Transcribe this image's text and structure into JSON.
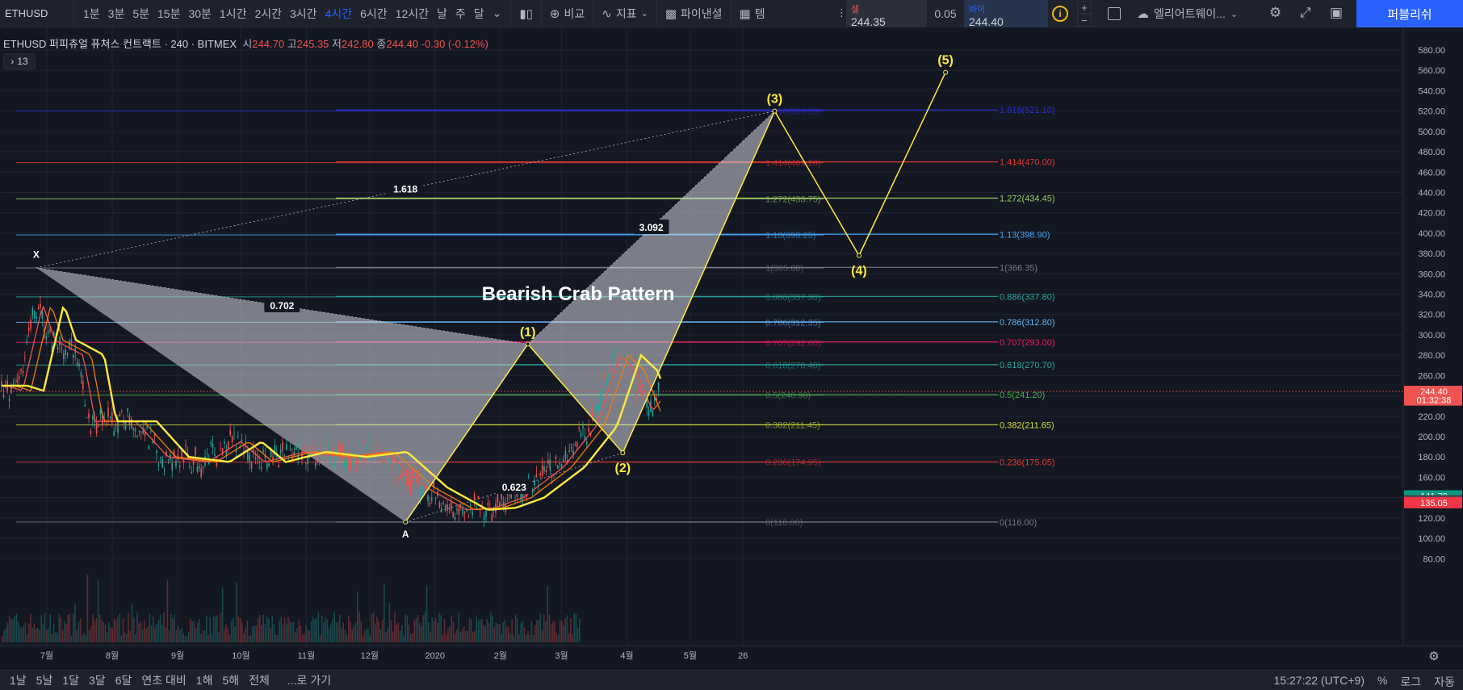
{
  "header": {
    "symbol": "ETHUSD",
    "timeframes": [
      "1분",
      "3분",
      "5분",
      "15분",
      "30분",
      "1시간",
      "2시간",
      "3시간",
      "4시간",
      "6시간",
      "12시간",
      "날",
      "주",
      "달"
    ],
    "active_timeframe": "4시간",
    "compare_label": "비교",
    "indicators_label": "지표",
    "financials_label": "파이낸셜",
    "template_label": "템",
    "sell_label": "셀",
    "sell_price": "244.35",
    "spread": "0.05",
    "buy_label": "바이",
    "buy_price": "244.40",
    "layout_name": "엘리어트웨이...",
    "publish_label": "퍼블리쉬"
  },
  "legend": {
    "title": "ETHUSD 퍼피츄얼 퓨쳐스 컨트랙트",
    "interval": "240",
    "exchange": "BITMEX",
    "open_label": "시",
    "open": "244.70",
    "high_label": "고",
    "high": "245.35",
    "low_label": "저",
    "low": "242.80",
    "close_label": "종",
    "close": "244.40",
    "change": "-0.30 (-0.12%)",
    "indicator_count": "13"
  },
  "chart_data": {
    "type": "line",
    "ylim": [
      70,
      590
    ],
    "y_ticks": [
      "580.00",
      "560.00",
      "540.00",
      "520.00",
      "500.00",
      "480.00",
      "460.00",
      "440.00",
      "420.00",
      "400.00",
      "380.00",
      "360.00",
      "340.00",
      "320.00",
      "300.00",
      "280.00",
      "260.00",
      "240.00",
      "220.00",
      "200.00",
      "180.00",
      "160.00",
      "140.00",
      "120.00",
      "100.00",
      "80.00"
    ],
    "x_labels": [
      "7월",
      "8월",
      "9월",
      "10월",
      "11월",
      "12월",
      "2020",
      "2월",
      "3월",
      "4월",
      "5월",
      "26"
    ],
    "x_label_dates": [
      "2019-07-01",
      "2019-08-01",
      "2019-09-01",
      "2019-10-01",
      "2019-11-01",
      "2019-12-01",
      "2020-01-01",
      "2020-02-01",
      "2020-03-01",
      "2020-04-01",
      "2020-05-01",
      "2020-05-26"
    ],
    "price_labels": [
      {
        "text": "244.40",
        "value": 244.4,
        "color": "#ef5350"
      },
      {
        "text": "01:32:38",
        "value": 236,
        "color": "#ef5350"
      },
      {
        "text": "141.70",
        "value": 141.7,
        "color": "#089981"
      },
      {
        "text": "136.95",
        "value": 136.95,
        "color": "#434651"
      },
      {
        "text": "135.05",
        "value": 135.05,
        "color": "#f23645"
      }
    ],
    "fib_levels": [
      {
        "ratio": "1.618",
        "color": "#2a2ecd",
        "p1": 520.15,
        "p2": 521.1
      },
      {
        "ratio": "1.414",
        "color": "#e53935",
        "p1": 469.2,
        "p2": 470.0
      },
      {
        "ratio": "1.272",
        "color": "#9ccc65",
        "p1": 433.75,
        "p2": 434.45
      },
      {
        "ratio": "1.13",
        "color": "#42a5f5",
        "p1": 398.25,
        "p2": 398.9
      },
      {
        "ratio": "1",
        "color": "#787b86",
        "p1": 365.8,
        "p2": 366.35
      },
      {
        "ratio": "0.886",
        "color": "#26a69a",
        "p1": 337.3,
        "p2": 337.8
      },
      {
        "ratio": "0.786",
        "color": "#64b5f6",
        "p1": 312.35,
        "p2": 312.8
      },
      {
        "ratio": "0.707",
        "color": "#e91e63",
        "p1": 292.6,
        "p2": 293.0
      },
      {
        "ratio": "0.618",
        "color": "#26a69a",
        "p1": 270.4,
        "p2": 270.7
      },
      {
        "ratio": "0.5",
        "color": "#4caf50",
        "p1": 240.9,
        "p2": 241.2
      },
      {
        "ratio": "0.382",
        "color": "#cddc39",
        "p1": 211.45,
        "p2": 211.65
      },
      {
        "ratio": "0.236",
        "color": "#e53935",
        "p1": 174.95,
        "p2": 175.05
      },
      {
        "ratio": "0",
        "color": "#787b86",
        "p1": 116.0,
        "p2": 116.0
      }
    ],
    "harmonic": {
      "title": "Bearish Crab Pattern",
      "points": [
        {
          "label": "X",
          "date": "2019-06-26",
          "price": 366
        },
        {
          "label": "A",
          "date": "2019-12-18",
          "price": 116
        },
        {
          "label": "(1)",
          "date": "2020-02-14",
          "price": 291
        },
        {
          "label": "(2)",
          "date": "2020-03-30",
          "price": 184
        },
        {
          "label": "(3)",
          "date": "2020-06-10",
          "price": 520
        }
      ],
      "ratios": [
        {
          "text": "0.702"
        },
        {
          "text": "0.623"
        },
        {
          "text": "1.618"
        },
        {
          "text": "3.092"
        }
      ]
    },
    "projection": {
      "points": [
        {
          "label": "(4)",
          "date": "2020-07-20",
          "price": 378
        },
        {
          "label": "(5)",
          "date": "2020-08-30",
          "price": 558
        }
      ]
    }
  },
  "footer": {
    "ranges": [
      "1날",
      "5날",
      "1달",
      "3달",
      "6달",
      "연초 대비",
      "1해",
      "5해",
      "전체"
    ],
    "goto_label": "...로 가기",
    "time": "15:27:22 (UTC+9)",
    "percent_label": "%",
    "log_label": "로그",
    "auto_label": "자동"
  }
}
